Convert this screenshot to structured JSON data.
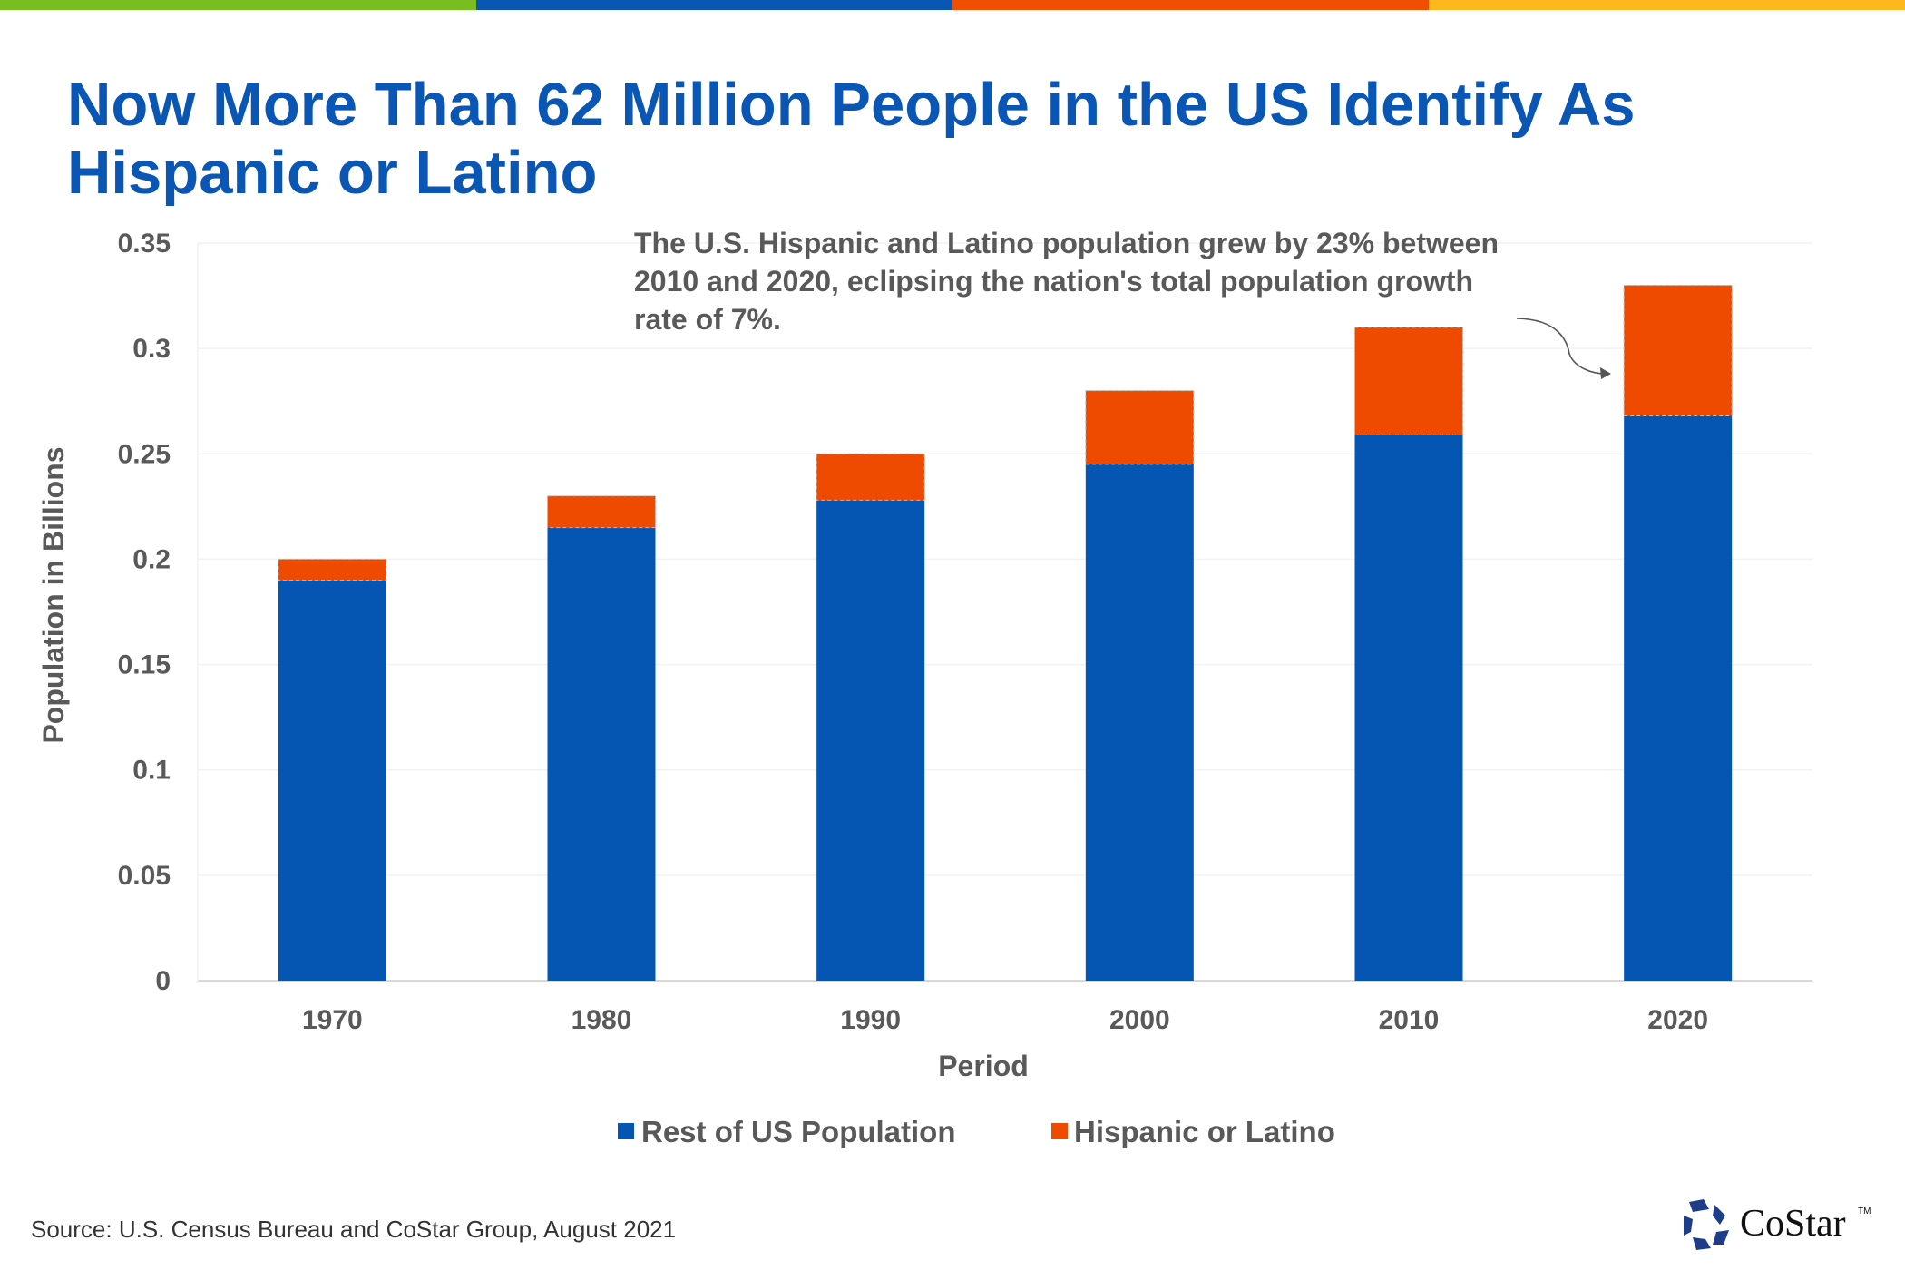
{
  "header": {
    "title": "Now More Than 62 Million People in the US Identify As Hispanic or Latino",
    "stripe_colors": [
      "#78be20",
      "#0a56b5",
      "#f04e00",
      "#ffb81c"
    ]
  },
  "chart_data": {
    "type": "bar",
    "stacked": true,
    "categories": [
      "1970",
      "1980",
      "1990",
      "2000",
      "2010",
      "2020"
    ],
    "series": [
      {
        "name": "Rest of US Population",
        "color": "#0556b3",
        "values": [
          0.19,
          0.215,
          0.228,
          0.245,
          0.259,
          0.268
        ]
      },
      {
        "name": "Hispanic or Latino",
        "color": "#ee4a00",
        "values": [
          0.01,
          0.015,
          0.022,
          0.035,
          0.051,
          0.062
        ]
      }
    ],
    "xlabel": "Period",
    "ylabel": "Population in Billions",
    "ylim": [
      0,
      0.35
    ],
    "yticks": [
      "0",
      "0.05",
      "0.1",
      "0.15",
      "0.2",
      "0.25",
      "0.3",
      "0.35"
    ],
    "grid": true,
    "legend": "bottom",
    "annotation": {
      "lines": [
        "The U.S. Hispanic and Latino population grew by 23% between",
        "2010 and 2020, eclipsing the nation's total population growth",
        "rate of 7%."
      ],
      "points_to": "2020"
    }
  },
  "footer": {
    "source": "Source: U.S. Census Bureau and CoStar Group, August 2021",
    "logo_text": "CoStar",
    "logo_color": "#1f3c88"
  }
}
